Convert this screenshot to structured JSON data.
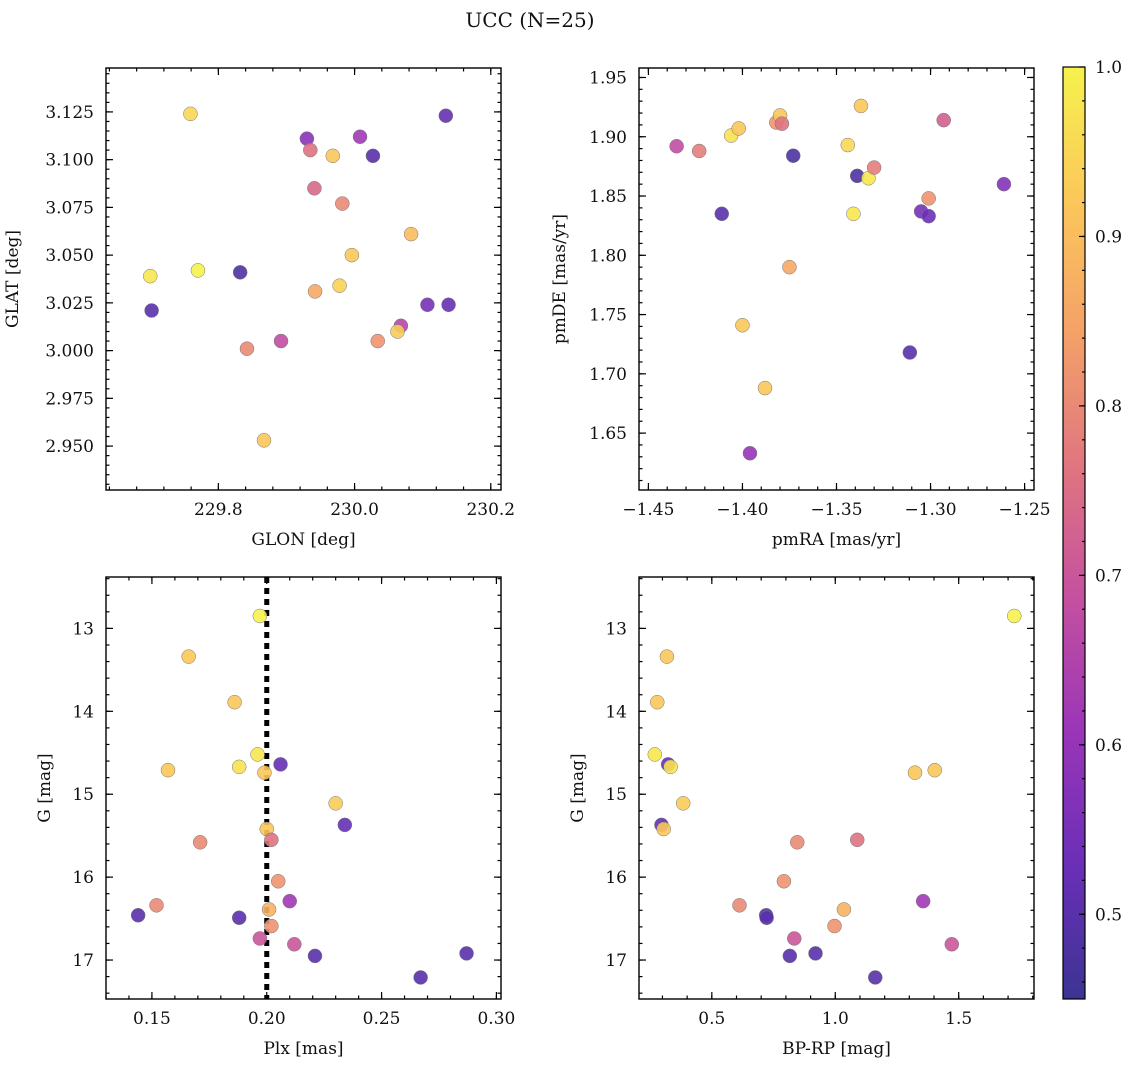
{
  "figure": {
    "title": "UCC (N=25)"
  },
  "colorbar": {
    "min": 0.45,
    "max": 1.0,
    "ticks": [
      0.5,
      0.6,
      0.7,
      0.8,
      0.9,
      1.0
    ],
    "tick_labels": [
      "0.5",
      "0.6",
      "0.7",
      "0.8",
      "0.9",
      "1.0"
    ],
    "colormap": "plasma",
    "stops": [
      "#3c3493",
      "#6a2fb8",
      "#9a35b8",
      "#c450a0",
      "#e07580",
      "#f4a168",
      "#fbc75a",
      "#f6f24c"
    ]
  },
  "chart_data": [
    {
      "type": "scatter",
      "xlabel": "GLON [deg]",
      "ylabel": "GLAT [deg]",
      "xlim": [
        229.635,
        230.215
      ],
      "ylim": [
        2.927,
        3.148
      ],
      "xticks": [
        229.8,
        230.0,
        230.2
      ],
      "xtick_labels": [
        "229.8",
        "230.0",
        "230.2"
      ],
      "yticks": [
        2.95,
        2.975,
        3.0,
        3.025,
        3.05,
        3.075,
        3.1,
        3.125
      ],
      "ytick_labels": [
        "2.950",
        "2.975",
        "3.000",
        "3.025",
        "3.050",
        "3.075",
        "3.100",
        "3.125"
      ],
      "y_inverted": false,
      "points": [
        {
          "x": 229.759,
          "y": 3.124,
          "c": 0.95
        },
        {
          "x": 229.93,
          "y": 3.111,
          "c": 0.58
        },
        {
          "x": 229.935,
          "y": 3.105,
          "c": 0.76
        },
        {
          "x": 229.968,
          "y": 3.102,
          "c": 0.92
        },
        {
          "x": 230.008,
          "y": 3.112,
          "c": 0.62
        },
        {
          "x": 230.027,
          "y": 3.102,
          "c": 0.5
        },
        {
          "x": 230.134,
          "y": 3.123,
          "c": 0.52
        },
        {
          "x": 229.941,
          "y": 3.085,
          "c": 0.74
        },
        {
          "x": 229.982,
          "y": 3.077,
          "c": 0.8
        },
        {
          "x": 230.083,
          "y": 3.061,
          "c": 0.9
        },
        {
          "x": 229.7,
          "y": 3.039,
          "c": 0.98
        },
        {
          "x": 229.77,
          "y": 3.042,
          "c": 1.0
        },
        {
          "x": 229.832,
          "y": 3.041,
          "c": 0.48
        },
        {
          "x": 229.996,
          "y": 3.05,
          "c": 0.92
        },
        {
          "x": 229.942,
          "y": 3.031,
          "c": 0.86
        },
        {
          "x": 229.978,
          "y": 3.034,
          "c": 0.94
        },
        {
          "x": 229.702,
          "y": 3.021,
          "c": 0.5
        },
        {
          "x": 230.107,
          "y": 3.024,
          "c": 0.55
        },
        {
          "x": 230.138,
          "y": 3.024,
          "c": 0.52
        },
        {
          "x": 230.068,
          "y": 3.013,
          "c": 0.66
        },
        {
          "x": 230.063,
          "y": 3.01,
          "c": 0.93
        },
        {
          "x": 229.842,
          "y": 3.001,
          "c": 0.8
        },
        {
          "x": 229.892,
          "y": 3.005,
          "c": 0.68
        },
        {
          "x": 230.034,
          "y": 3.005,
          "c": 0.82
        },
        {
          "x": 229.867,
          "y": 2.953,
          "c": 0.92
        }
      ]
    },
    {
      "type": "scatter",
      "xlabel": "pmRA [mas/yr]",
      "ylabel": "pmDE [mas/yr]",
      "xlim": [
        -1.455,
        -1.245
      ],
      "ylim": [
        1.602,
        1.958
      ],
      "xticks": [
        -1.45,
        -1.4,
        -1.35,
        -1.3,
        -1.25
      ],
      "xtick_labels": [
        "−1.45",
        "−1.40",
        "−1.35",
        "−1.30",
        "−1.25"
      ],
      "yticks": [
        1.65,
        1.7,
        1.75,
        1.8,
        1.85,
        1.9,
        1.95
      ],
      "ytick_labels": [
        "1.65",
        "1.70",
        "1.75",
        "1.80",
        "1.85",
        "1.90",
        "1.95"
      ],
      "y_inverted": false,
      "points": [
        {
          "x": -1.435,
          "y": 1.892,
          "c": 0.68
        },
        {
          "x": -1.423,
          "y": 1.888,
          "c": 0.78
        },
        {
          "x": -1.406,
          "y": 1.901,
          "c": 0.97
        },
        {
          "x": -1.402,
          "y": 1.907,
          "c": 0.92
        },
        {
          "x": -1.382,
          "y": 1.912,
          "c": 0.82
        },
        {
          "x": -1.38,
          "y": 1.918,
          "c": 0.92
        },
        {
          "x": -1.379,
          "y": 1.911,
          "c": 0.76
        },
        {
          "x": -1.337,
          "y": 1.926,
          "c": 0.92
        },
        {
          "x": -1.293,
          "y": 1.914,
          "c": 0.72
        },
        {
          "x": -1.344,
          "y": 1.893,
          "c": 0.95
        },
        {
          "x": -1.373,
          "y": 1.884,
          "c": 0.48
        },
        {
          "x": -1.339,
          "y": 1.867,
          "c": 0.48
        },
        {
          "x": -1.333,
          "y": 1.865,
          "c": 0.98
        },
        {
          "x": -1.33,
          "y": 1.874,
          "c": 0.78
        },
        {
          "x": -1.301,
          "y": 1.848,
          "c": 0.82
        },
        {
          "x": -1.261,
          "y": 1.86,
          "c": 0.57
        },
        {
          "x": -1.411,
          "y": 1.835,
          "c": 0.5
        },
        {
          "x": -1.341,
          "y": 1.835,
          "c": 0.98
        },
        {
          "x": -1.305,
          "y": 1.837,
          "c": 0.55
        },
        {
          "x": -1.301,
          "y": 1.833,
          "c": 0.53
        },
        {
          "x": -1.375,
          "y": 1.79,
          "c": 0.86
        },
        {
          "x": -1.4,
          "y": 1.741,
          "c": 0.92
        },
        {
          "x": -1.311,
          "y": 1.718,
          "c": 0.5
        },
        {
          "x": -1.388,
          "y": 1.688,
          "c": 0.92
        },
        {
          "x": -1.396,
          "y": 1.633,
          "c": 0.6
        }
      ]
    },
    {
      "type": "scatter",
      "xlabel": "Plx [mas]",
      "ylabel": "G [mag]",
      "xlim": [
        0.13,
        0.302
      ],
      "ylim": [
        12.38,
        17.47
      ],
      "xticks": [
        0.15,
        0.2,
        0.25,
        0.3
      ],
      "xtick_labels": [
        "0.15",
        "0.20",
        "0.25",
        "0.30"
      ],
      "yticks": [
        13,
        14,
        15,
        16,
        17
      ],
      "ytick_labels": [
        "13",
        "14",
        "15",
        "16",
        "17"
      ],
      "y_inverted": true,
      "vline": {
        "x": 0.2,
        "style": "dotted"
      },
      "points": [
        {
          "x": 0.197,
          "y": 12.85,
          "c": 1.0
        },
        {
          "x": 0.166,
          "y": 13.34,
          "c": 0.92
        },
        {
          "x": 0.186,
          "y": 13.89,
          "c": 0.92
        },
        {
          "x": 0.196,
          "y": 14.52,
          "c": 0.98
        },
        {
          "x": 0.157,
          "y": 14.71,
          "c": 0.92
        },
        {
          "x": 0.188,
          "y": 14.67,
          "c": 0.97
        },
        {
          "x": 0.199,
          "y": 14.74,
          "c": 0.92
        },
        {
          "x": 0.206,
          "y": 14.64,
          "c": 0.52
        },
        {
          "x": 0.23,
          "y": 15.11,
          "c": 0.93
        },
        {
          "x": 0.234,
          "y": 15.37,
          "c": 0.52
        },
        {
          "x": 0.2,
          "y": 15.42,
          "c": 0.92
        },
        {
          "x": 0.202,
          "y": 15.55,
          "c": 0.76
        },
        {
          "x": 0.171,
          "y": 15.58,
          "c": 0.8
        },
        {
          "x": 0.205,
          "y": 16.05,
          "c": 0.82
        },
        {
          "x": 0.152,
          "y": 16.34,
          "c": 0.8
        },
        {
          "x": 0.21,
          "y": 16.29,
          "c": 0.62
        },
        {
          "x": 0.201,
          "y": 16.39,
          "c": 0.88
        },
        {
          "x": 0.144,
          "y": 16.46,
          "c": 0.5
        },
        {
          "x": 0.188,
          "y": 16.49,
          "c": 0.5
        },
        {
          "x": 0.202,
          "y": 16.59,
          "c": 0.82
        },
        {
          "x": 0.197,
          "y": 16.74,
          "c": 0.7
        },
        {
          "x": 0.212,
          "y": 16.81,
          "c": 0.7
        },
        {
          "x": 0.221,
          "y": 16.95,
          "c": 0.5
        },
        {
          "x": 0.287,
          "y": 16.92,
          "c": 0.5
        },
        {
          "x": 0.267,
          "y": 17.21,
          "c": 0.5
        }
      ]
    },
    {
      "type": "scatter",
      "xlabel": "BP-RP [mag]",
      "ylabel": "G [mag]",
      "xlim": [
        0.205,
        1.805
      ],
      "ylim": [
        12.38,
        17.47
      ],
      "xticks": [
        0.5,
        1.0,
        1.5
      ],
      "xtick_labels": [
        "0.5",
        "1.0",
        "1.5"
      ],
      "yticks": [
        13,
        14,
        15,
        16,
        17
      ],
      "ytick_labels": [
        "13",
        "14",
        "15",
        "16",
        "17"
      ],
      "y_inverted": true,
      "points": [
        {
          "x": 1.725,
          "y": 12.85,
          "c": 1.0
        },
        {
          "x": 0.318,
          "y": 13.34,
          "c": 0.92
        },
        {
          "x": 0.279,
          "y": 13.89,
          "c": 0.92
        },
        {
          "x": 0.269,
          "y": 14.52,
          "c": 0.98
        },
        {
          "x": 0.323,
          "y": 14.64,
          "c": 0.52
        },
        {
          "x": 0.333,
          "y": 14.67,
          "c": 0.97
        },
        {
          "x": 1.403,
          "y": 14.71,
          "c": 0.92
        },
        {
          "x": 1.323,
          "y": 14.74,
          "c": 0.92
        },
        {
          "x": 0.384,
          "y": 15.11,
          "c": 0.93
        },
        {
          "x": 0.296,
          "y": 15.37,
          "c": 0.52
        },
        {
          "x": 0.305,
          "y": 15.42,
          "c": 0.92
        },
        {
          "x": 1.089,
          "y": 15.55,
          "c": 0.76
        },
        {
          "x": 0.846,
          "y": 15.58,
          "c": 0.8
        },
        {
          "x": 0.792,
          "y": 16.05,
          "c": 0.82
        },
        {
          "x": 0.612,
          "y": 16.34,
          "c": 0.8
        },
        {
          "x": 1.356,
          "y": 16.29,
          "c": 0.62
        },
        {
          "x": 1.035,
          "y": 16.39,
          "c": 0.88
        },
        {
          "x": 0.72,
          "y": 16.46,
          "c": 0.5
        },
        {
          "x": 0.722,
          "y": 16.49,
          "c": 0.5
        },
        {
          "x": 0.997,
          "y": 16.59,
          "c": 0.82
        },
        {
          "x": 0.834,
          "y": 16.74,
          "c": 0.7
        },
        {
          "x": 1.472,
          "y": 16.81,
          "c": 0.7
        },
        {
          "x": 0.816,
          "y": 16.95,
          "c": 0.5
        },
        {
          "x": 0.92,
          "y": 16.92,
          "c": 0.5
        },
        {
          "x": 1.162,
          "y": 17.21,
          "c": 0.5
        }
      ]
    }
  ]
}
